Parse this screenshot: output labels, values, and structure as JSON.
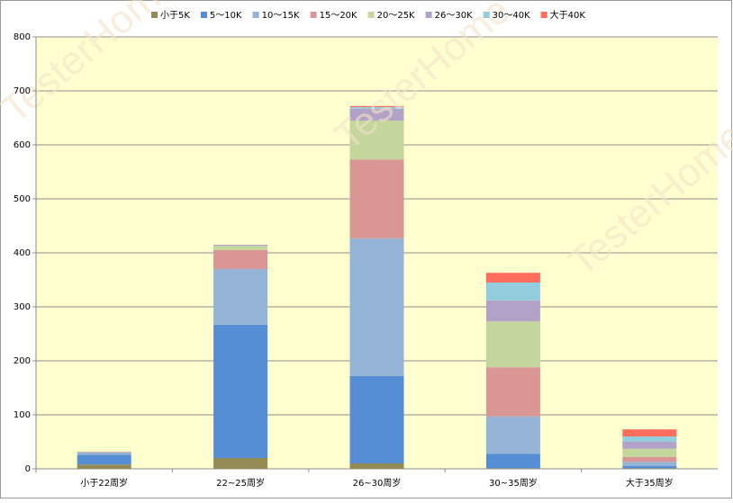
{
  "chart_data": {
    "type": "stacked_bar",
    "watermark": "TesterHome",
    "categories": [
      "小于22周岁",
      "22~25周岁",
      "26~30周岁",
      "30~35周岁",
      "大于35周岁"
    ],
    "series": [
      {
        "name": "小于5K",
        "color": "#948a54",
        "values": [
          8,
          20,
          10,
          1,
          1
        ]
      },
      {
        "name": "5～10K",
        "color": "#558ed5",
        "values": [
          18,
          247,
          162,
          27,
          4
        ]
      },
      {
        "name": "10～15K",
        "color": "#95b3d7",
        "values": [
          4,
          103,
          255,
          69,
          8
        ]
      },
      {
        "name": "15～20K",
        "color": "#d99694",
        "values": [
          1,
          35,
          146,
          91,
          9
        ]
      },
      {
        "name": "20～25K",
        "color": "#c3d69b",
        "values": [
          1,
          8,
          72,
          85,
          15
        ]
      },
      {
        "name": "26～30K",
        "color": "#b3a2c7",
        "values": [
          0,
          2,
          22,
          39,
          13
        ]
      },
      {
        "name": "30～40K",
        "color": "#93cddd",
        "values": [
          0,
          0,
          3,
          33,
          10
        ]
      },
      {
        "name": "大于40K",
        "color": "#ff6e5c",
        "values": [
          0,
          0,
          2,
          18,
          13
        ]
      }
    ],
    "ylim": [
      0,
      800
    ],
    "yticks": [
      0,
      100,
      200,
      300,
      400,
      500,
      600,
      700,
      800
    ],
    "grid": true,
    "legend": "top"
  }
}
